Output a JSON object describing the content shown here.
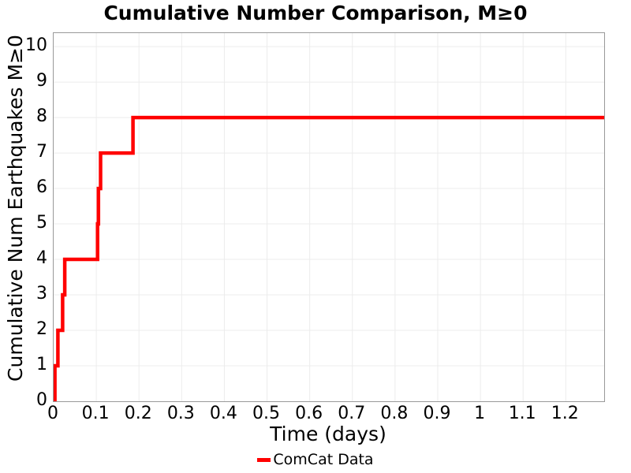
{
  "title": "Cumulative Number Comparison, M≥0",
  "colors": {
    "line": "#ff0000",
    "grid": "#ececec",
    "plot_border": "#999999",
    "text": "#000000",
    "background": "#ffffff"
  },
  "chart_data": {
    "type": "line",
    "line_style": "step-post",
    "title": "Cumulative Number Comparison, M≥0",
    "xlabel": "Time (days)",
    "ylabel": "Cumulative Num Earthquakes M≥0",
    "xlim": [
      0,
      1.29
    ],
    "ylim": [
      0,
      10.38
    ],
    "grid": true,
    "legend_position": "bottom-center",
    "x_tick_values": [
      0,
      0.1,
      0.2,
      0.3,
      0.4,
      0.5,
      0.6,
      0.7,
      0.8,
      0.9,
      1,
      1.1,
      1.2
    ],
    "x_tick_labels": [
      "0",
      "0.1",
      "0.2",
      "0.3",
      "0.4",
      "0.5",
      "0.6",
      "0.7",
      "0.8",
      "0.9",
      "1",
      "1.1",
      "1.2"
    ],
    "y_tick_values": [
      0,
      1,
      2,
      3,
      4,
      5,
      6,
      7,
      8,
      9,
      10
    ],
    "y_tick_labels": [
      "0",
      "1",
      "2",
      "3",
      "4",
      "5",
      "6",
      "7",
      "8",
      "9",
      "10"
    ],
    "series": [
      {
        "name": "ComCat Data",
        "color": "#ff0000",
        "line_width": 4.5,
        "event_times_days": [
          0.003,
          0.01,
          0.021,
          0.026,
          0.103,
          0.105,
          0.11,
          0.186
        ],
        "cumulative_counts": [
          1,
          2,
          3,
          4,
          5,
          6,
          7,
          8
        ],
        "start_point": [
          0,
          0
        ],
        "end_time_days": 1.29,
        "final_count": 8
      }
    ]
  },
  "legend": {
    "items": [
      {
        "label": "ComCat Data",
        "color": "#ff0000"
      }
    ]
  }
}
